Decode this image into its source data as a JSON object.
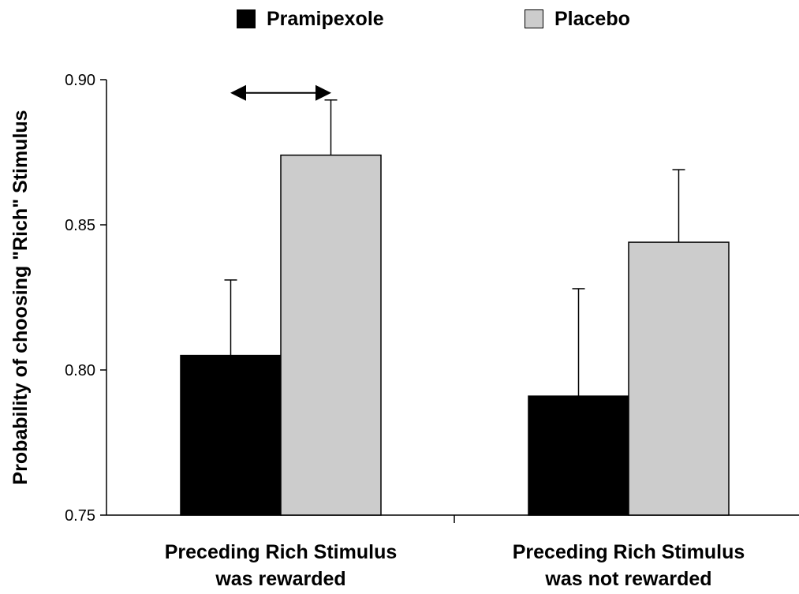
{
  "chart_data": {
    "type": "bar",
    "ylabel": "Probability of choosing \"Rich\" Stimulus",
    "xlabel": "",
    "ylim": [
      0.75,
      0.9
    ],
    "yticks": [
      "0.75",
      "0.80",
      "0.85",
      "0.90"
    ],
    "categories": [
      [
        "Preceding Rich Stimulus",
        "was rewarded"
      ],
      [
        "Preceding Rich Stimulus",
        "was not rewarded"
      ]
    ],
    "series": [
      {
        "name": "Pramipexole",
        "color": "#000000",
        "values": [
          0.805,
          0.791
        ],
        "errors": [
          0.026,
          0.037
        ]
      },
      {
        "name": "Placebo",
        "color": "#cccccc",
        "values": [
          0.874,
          0.844
        ],
        "errors": [
          0.019,
          0.025
        ]
      }
    ],
    "annotations": [
      {
        "type": "double-arrow",
        "category_index": 0,
        "y": 0.896
      }
    ],
    "grid": false,
    "legend_position": "top-center"
  }
}
